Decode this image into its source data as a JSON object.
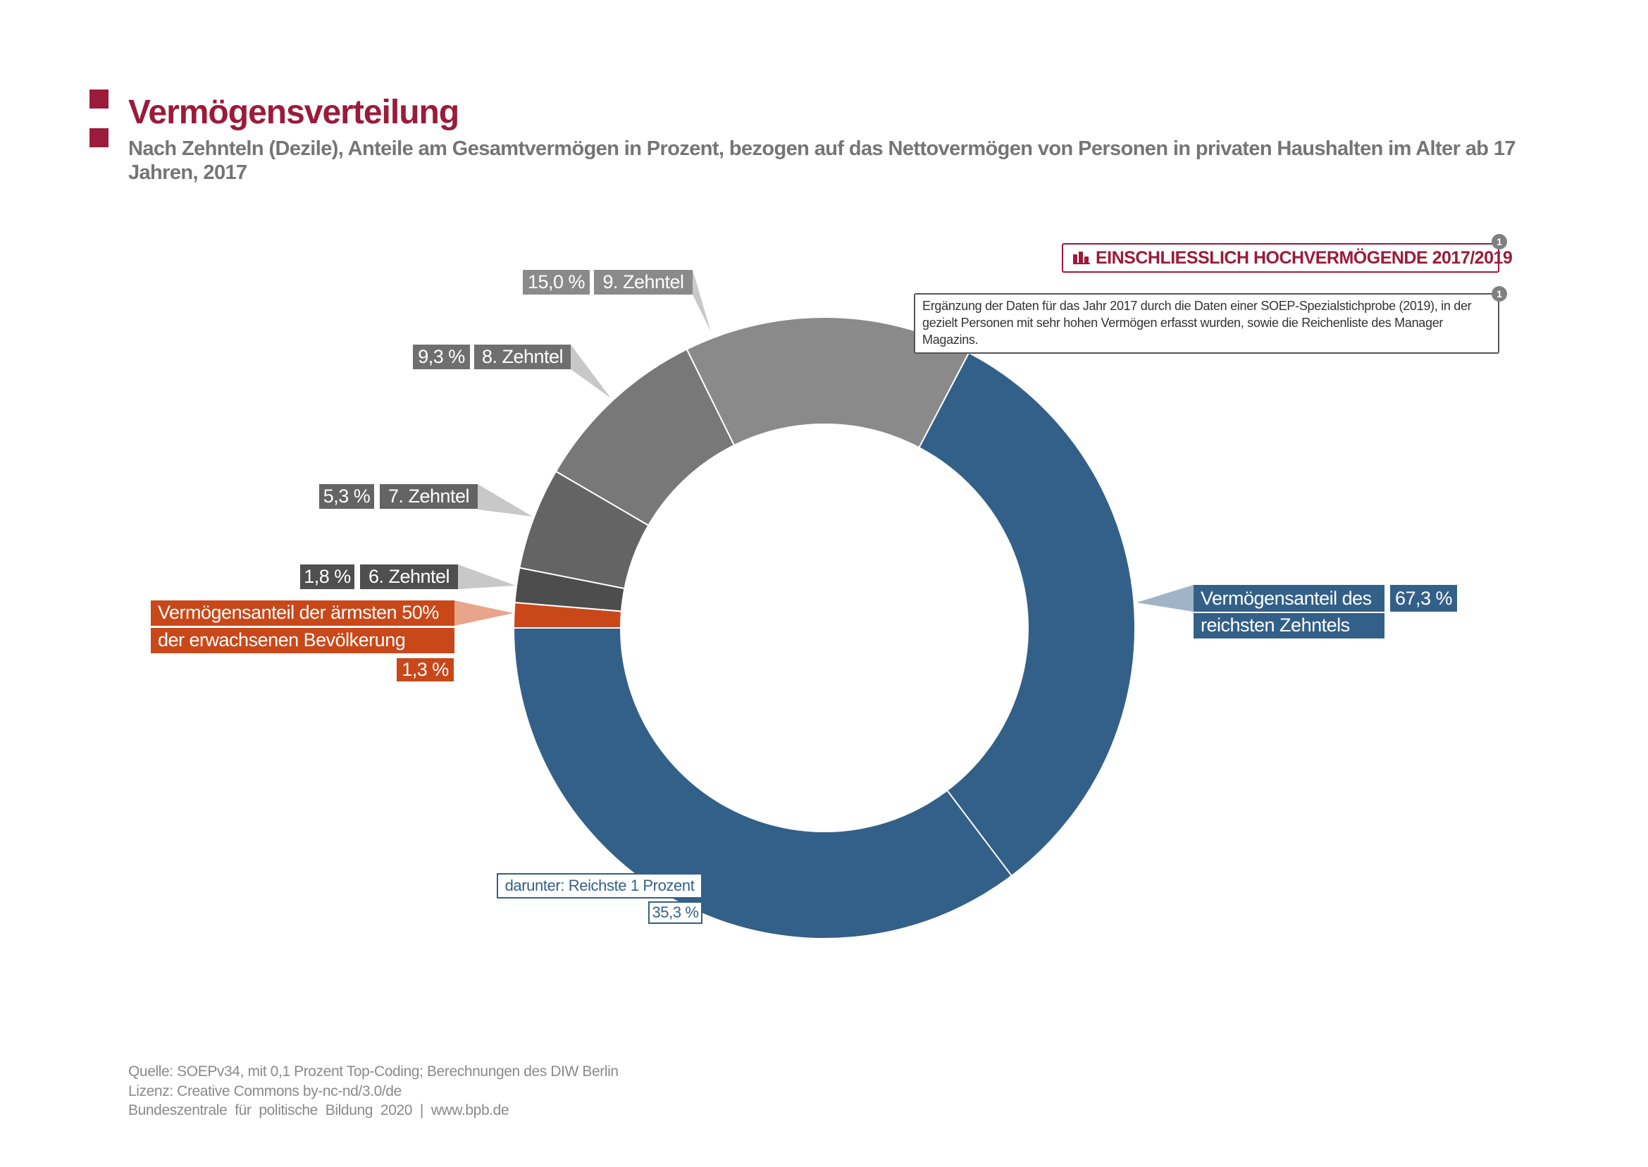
{
  "header": {
    "title": "Vermögensverteilung",
    "subtitle": "Nach Zehnteln (Dezile), Anteile am Gesamtvermögen in Prozent, bezogen auf das Nettovermögen von Personen in privaten Haushalten im Alter ab 17 Jahren, 2017",
    "brand_color": "#9b1b3a"
  },
  "badge": {
    "icon": "bar-chart-icon",
    "label": "EINSCHLIESSLICH HOCHVERMÖGENDE 2017/2019",
    "footnote": "1"
  },
  "note": {
    "footnote": "1",
    "text": "Ergänzung der Daten für das Jahr 2017 durch die Daten einer SOEP-Spezialstichprobe (2019), in der gezielt Personen mit sehr hohen Vermögen erfasst wurden, sowie die Reichenliste des Manager Magazins."
  },
  "chart_data": {
    "type": "pie",
    "variant": "donut",
    "title": "Vermögensverteilung",
    "slices": [
      {
        "key": "poorest50",
        "label": "Vermögensanteil der ärmsten 50% der erwachsenen Bevölkerung",
        "line1": "Vermögensanteil der ärmsten 50%",
        "line2": "der erwachsenen Bevölkerung",
        "value": 1.3,
        "value_label": "1,3 %",
        "color": "#c9481a"
      },
      {
        "key": "d6",
        "label": "6. Zehntel",
        "value": 1.8,
        "value_label": "1,8 %",
        "color": "#4d4d4d"
      },
      {
        "key": "d7",
        "label": "7. Zehntel",
        "value": 5.3,
        "value_label": "5,3 %",
        "color": "#646464"
      },
      {
        "key": "d8",
        "label": "8. Zehntel",
        "value": 9.3,
        "value_label": "9,3 %",
        "color": "#787878"
      },
      {
        "key": "d9",
        "label": "9. Zehntel",
        "value": 15.0,
        "value_label": "15,0 %",
        "color": "#8a8a8a"
      },
      {
        "key": "d10",
        "label": "Vermögensanteil des reichsten Zehntels",
        "line1": "Vermögensanteil des",
        "line2": "reichsten Zehntels",
        "value": 67.3,
        "value_label": "67,3 %",
        "color": "#336088"
      }
    ],
    "sub_slice": {
      "label": "darunter: Reichste 1 Prozent",
      "value": 35.3,
      "value_label": "35,3 %"
    },
    "start": "9 o'clock, clockwise"
  },
  "footer": {
    "source": "Quelle: SOEPv34, mit 0,1 Prozent Top-Coding; Berechnungen des DIW Berlin",
    "license": "Lizenz: Creative Commons by-nc-nd/3.0/de",
    "publisher": "Bundeszentrale  für  politische  Bildung  2020  |  www.bpb.de"
  }
}
